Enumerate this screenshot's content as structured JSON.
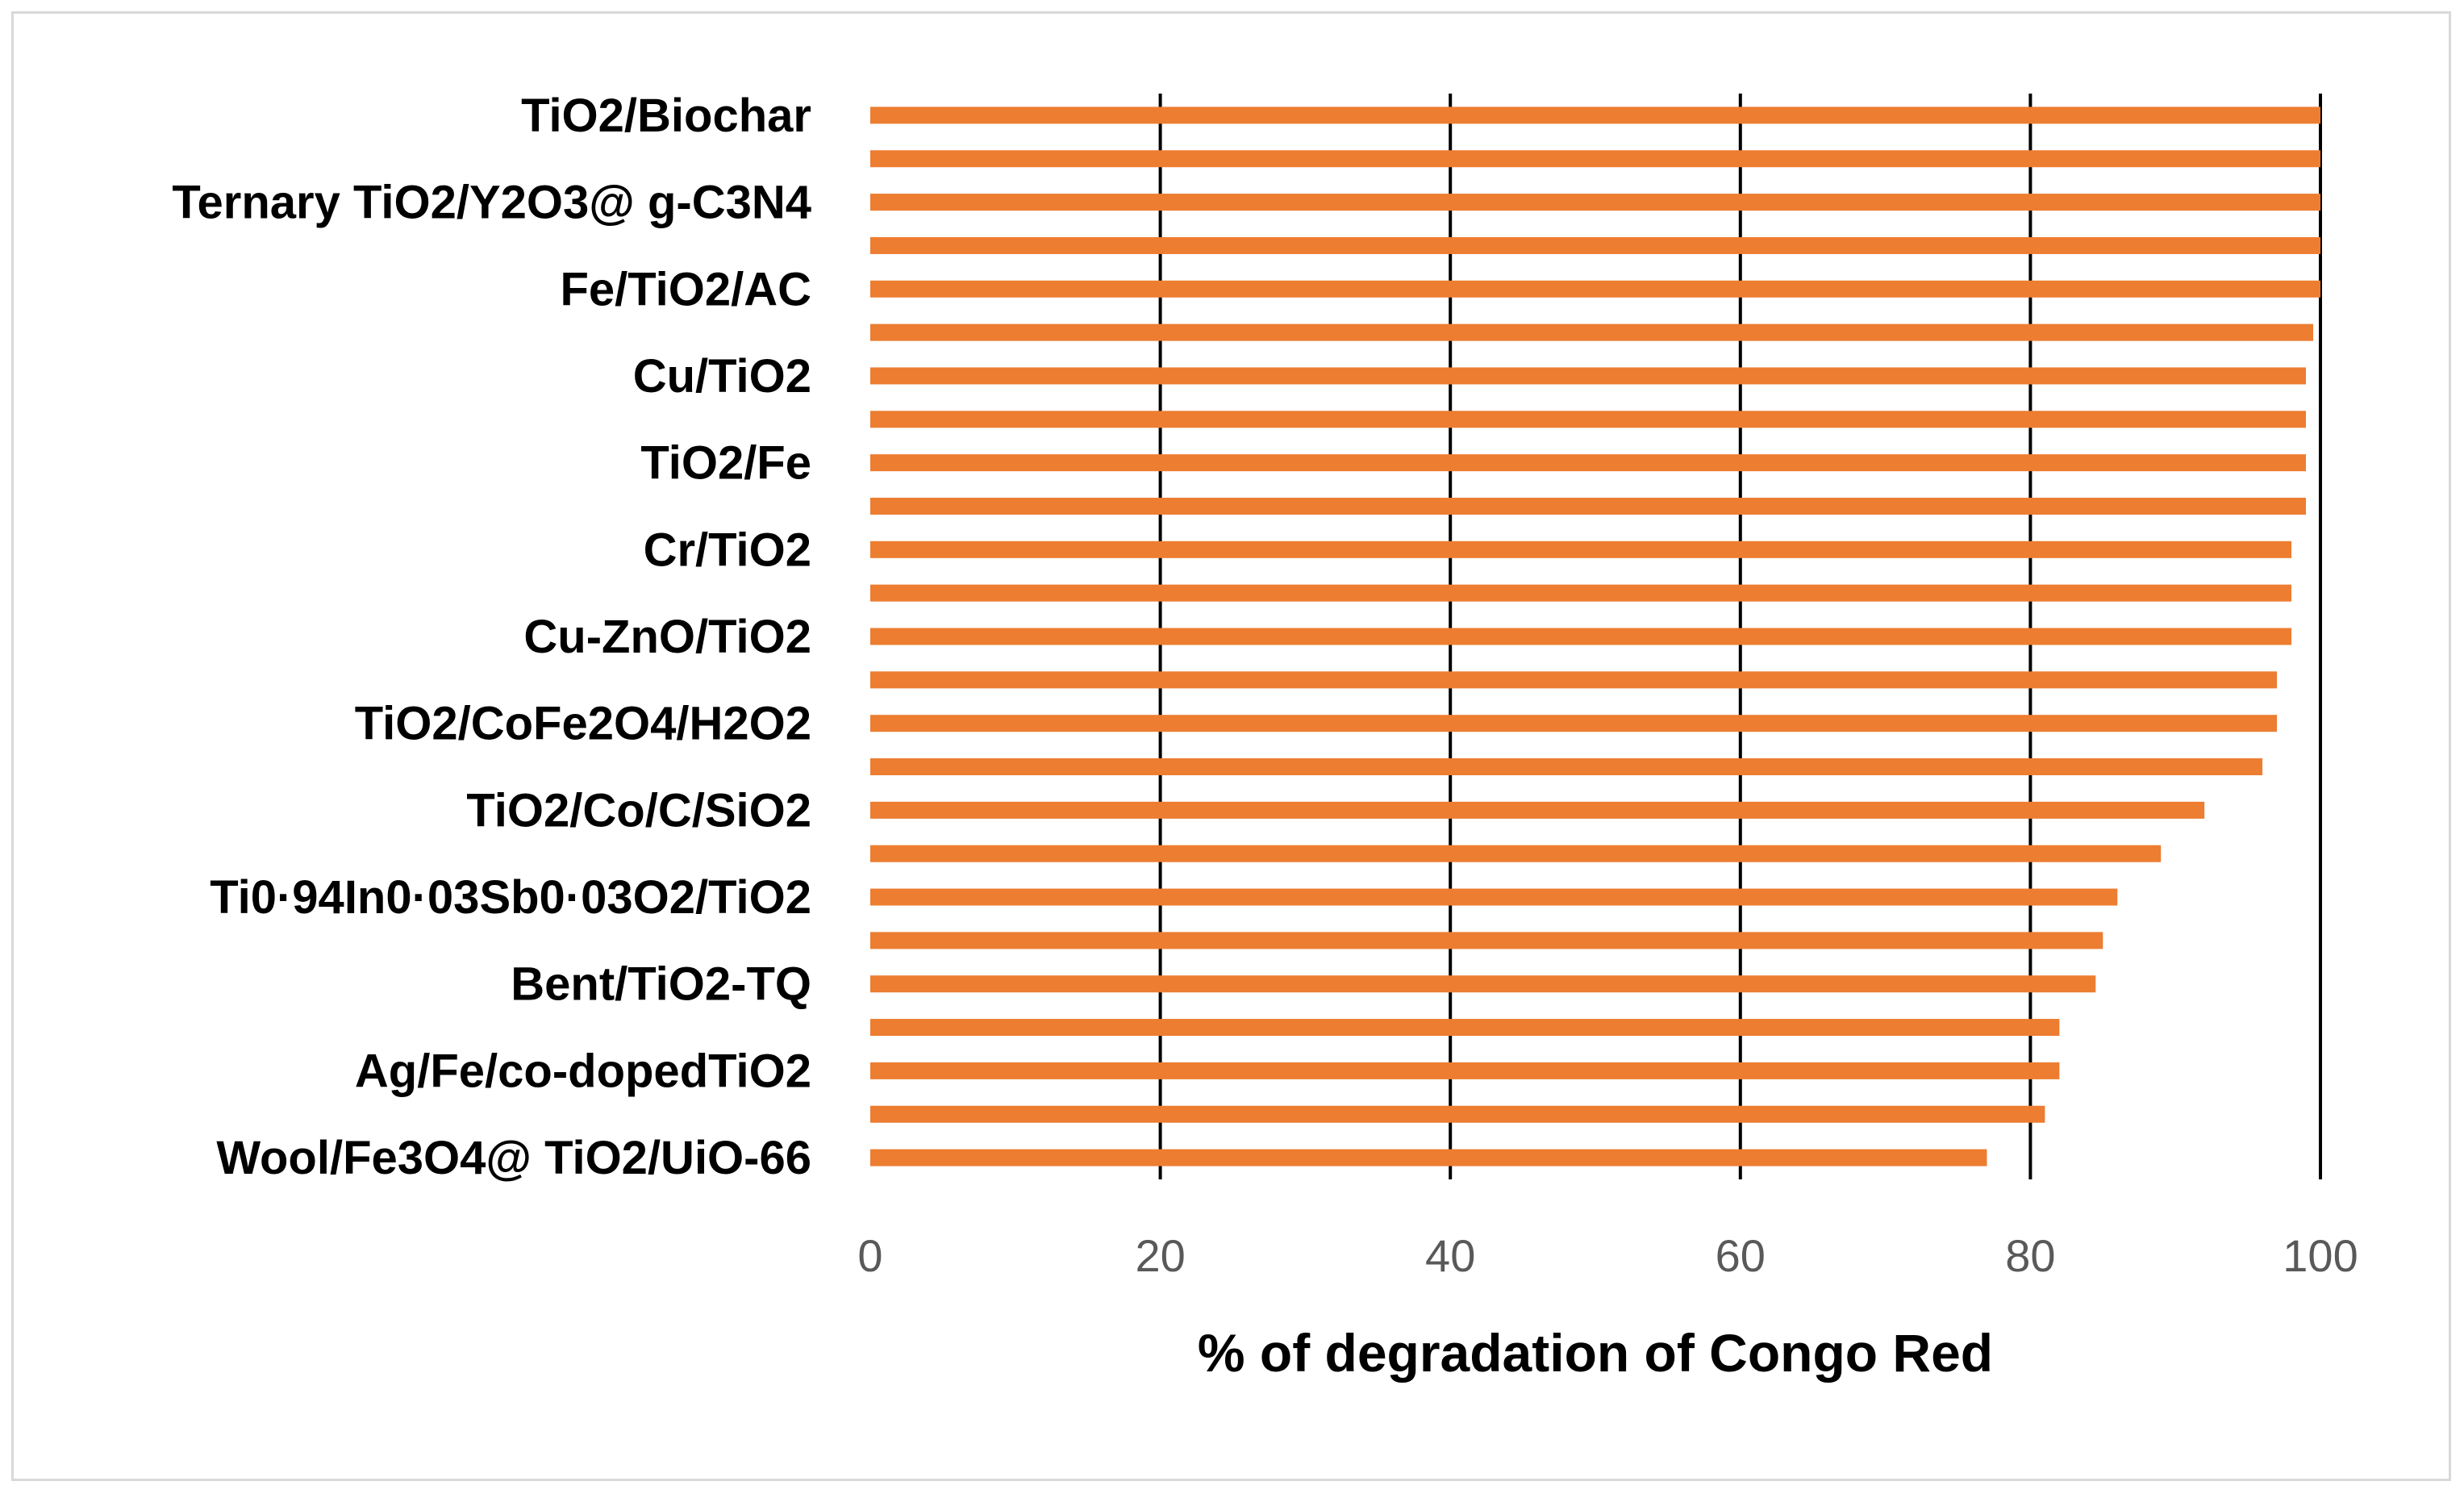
{
  "chart_data": {
    "type": "bar",
    "orientation": "horizontal",
    "title": "",
    "xlabel": "% of degradation of Congo Red",
    "ylabel": "",
    "xlim": [
      0,
      100
    ],
    "x_ticks": [
      0,
      20,
      40,
      60,
      80,
      100
    ],
    "grid": "vertical major gridlines",
    "legend": "none",
    "bar_color": "#ED7D31",
    "categories": [
      "TiO2/Biochar",
      "",
      "Ternary TiO2/Y2O3@ g-C3N4",
      "",
      "Fe/TiO2/AC",
      "",
      "Cu/TiO2",
      "",
      "TiO2/Fe",
      "",
      "Cr/TiO2",
      "",
      "Cu-ZnO/TiO2",
      "",
      "TiO2/CoFe2O4/H2O2",
      "",
      "TiO2/Co/C/SiO2",
      "",
      "Ti0·94In0·03Sb0·03O2/TiO2",
      "",
      "Bent/TiO2-TQ",
      "",
      "Ag/Fe/co-dopedTiO2",
      "",
      "Wool/Fe3O4@ TiO2/UiO-66"
    ],
    "values": [
      100,
      100,
      100,
      100,
      100,
      99.5,
      99,
      99,
      99,
      99,
      98,
      98,
      98,
      97,
      97,
      96,
      92,
      89,
      86,
      85,
      84.5,
      82,
      82,
      81,
      77
    ]
  }
}
